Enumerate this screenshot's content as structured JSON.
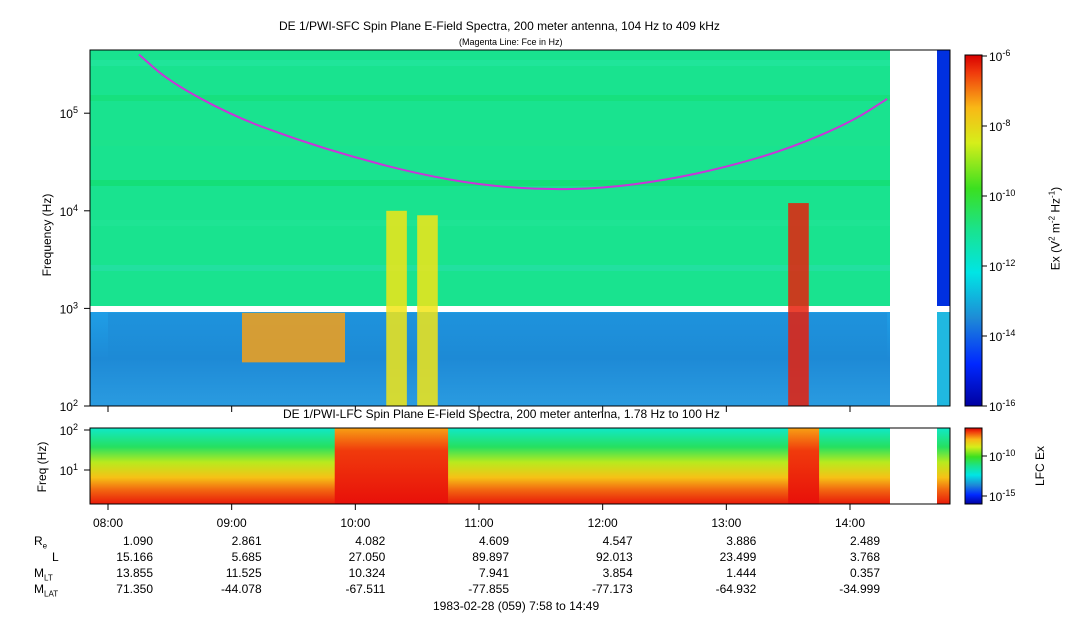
{
  "title_sfc": "DE 1/PWI-SFC  Spin Plane E-Field Spectra, 200 meter antenna, 104 Hz to 409 kHz",
  "subtitle_sfc": "(Magenta Line: Fce in Hz)",
  "title_lfc": "DE 1/PWI-LFC  Spin Plane E-Field Spectra, 200 meter antenna, 1.78 Hz to 100 Hz",
  "footer": "1983-02-28 (059) 7:58 to 14:49",
  "colors": {
    "background_green": "#19e38f",
    "blue": "#1e8ad6",
    "yellow": "#f2e516",
    "red": "#e8200c",
    "magenta": "#c836d8"
  },
  "chart_data": [
    {
      "type": "heatmap",
      "title": "DE 1/PWI-SFC  Spin Plane E-Field Spectra, 200 meter antenna, 104 Hz to 409 kHz",
      "subtitle": "(Magenta Line: Fce in Hz)",
      "ylabel": "Frequency (Hz)",
      "yscale": "log",
      "ylim": [
        100,
        409000
      ],
      "y_ticks": [
        {
          "base": "10",
          "exp": "2",
          "value": 100
        },
        {
          "base": "10",
          "exp": "3",
          "value": 1000
        },
        {
          "base": "10",
          "exp": "4",
          "value": 10000
        },
        {
          "base": "10",
          "exp": "5",
          "value": 100000
        }
      ],
      "xlim": [
        "07:58",
        "14:49"
      ],
      "colorbar": {
        "label": "Ex (V² m⁻² Hz⁻¹)",
        "scale": "log",
        "range": [
          1e-16,
          1e-06
        ],
        "ticks": [
          {
            "base": "10",
            "exp": "-6"
          },
          {
            "base": "10",
            "exp": "-8"
          },
          {
            "base": "10",
            "exp": "-10"
          },
          {
            "base": "10",
            "exp": "-12"
          },
          {
            "base": "10",
            "exp": "-14"
          },
          {
            "base": "10",
            "exp": "-16"
          }
        ]
      },
      "fce_curve": {
        "name": "Fce",
        "points": [
          {
            "t": "08:15",
            "f": 400000
          },
          {
            "t": "08:30",
            "f": 210000
          },
          {
            "t": "09:00",
            "f": 95000
          },
          {
            "t": "09:30",
            "f": 55000
          },
          {
            "t": "10:00",
            "f": 35000
          },
          {
            "t": "10:30",
            "f": 24000
          },
          {
            "t": "11:00",
            "f": 18500
          },
          {
            "t": "11:30",
            "f": 16500
          },
          {
            "t": "12:00",
            "f": 17000
          },
          {
            "t": "12:30",
            "f": 20500
          },
          {
            "t": "13:00",
            "f": 28000
          },
          {
            "t": "13:30",
            "f": 43000
          },
          {
            "t": "14:00",
            "f": 80000
          },
          {
            "t": "14:18",
            "f": 140000
          }
        ]
      },
      "features": [
        {
          "t_start": "08:00",
          "t_end": "14:18",
          "f_low": 300,
          "f_high": 900,
          "level": "blue"
        },
        {
          "t_start": "09:05",
          "t_end": "09:55",
          "f_low": 280,
          "f_high": 900,
          "level": "orange"
        },
        {
          "t_start": "10:15",
          "t_end": "10:25",
          "f_low": 100,
          "f_high": 10000,
          "level": "yellow"
        },
        {
          "t_start": "10:30",
          "t_end": "10:40",
          "f_low": 100,
          "f_high": 9000,
          "level": "yellow"
        },
        {
          "t_start": "13:30",
          "t_end": "13:40",
          "f_low": 100,
          "f_high": 12000,
          "level": "red"
        }
      ]
    },
    {
      "type": "heatmap",
      "title": "DE 1/PWI-LFC  Spin Plane E-Field Spectra, 200 meter antenna, 1.78 Hz to 100 Hz",
      "ylabel": "Freq (Hz)",
      "yscale": "log",
      "ylim": [
        1.78,
        100
      ],
      "y_ticks": [
        {
          "base": "10",
          "exp": "1",
          "value": 10
        },
        {
          "base": "10",
          "exp": "2",
          "value": 100
        }
      ],
      "xlim": [
        "07:58",
        "14:49"
      ],
      "colorbar": {
        "label": "LFC Ex",
        "scale": "log",
        "ticks": [
          {
            "base": "10",
            "exp": "-10"
          },
          {
            "base": "10",
            "exp": "-15"
          }
        ]
      },
      "features": [
        {
          "t_start": "09:50",
          "t_end": "10:45",
          "f_low": 1.78,
          "f_high": 100,
          "level": "red"
        },
        {
          "t_start": "13:30",
          "t_end": "13:45",
          "f_low": 1.78,
          "f_high": 100,
          "level": "red"
        }
      ]
    }
  ],
  "x_ticks": [
    "08:00",
    "09:00",
    "10:00",
    "11:00",
    "12:00",
    "13:00",
    "14:00"
  ],
  "orbit_table": {
    "rows": [
      {
        "label": "R",
        "sub": "e",
        "values": [
          "1.090",
          "2.861",
          "4.082",
          "4.609",
          "4.547",
          "3.886",
          "2.489"
        ]
      },
      {
        "label": "L",
        "sub": "",
        "values": [
          "15.166",
          "5.685",
          "27.050",
          "89.897",
          "92.013",
          "23.499",
          "3.768"
        ]
      },
      {
        "label": "M",
        "sub": "LT",
        "values": [
          "13.855",
          "11.525",
          "10.324",
          "7.941",
          "3.854",
          "1.444",
          "0.357"
        ]
      },
      {
        "label": "M",
        "sub": "LAT",
        "values": [
          "71.350",
          "-44.078",
          "-67.511",
          "-77.855",
          "-77.173",
          "-64.932",
          "-34.999"
        ]
      }
    ]
  }
}
